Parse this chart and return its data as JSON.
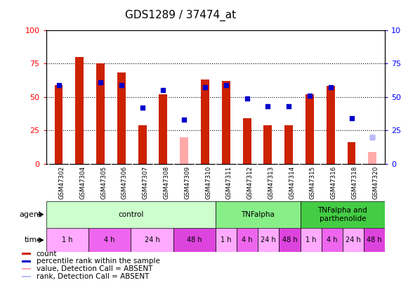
{
  "title": "GDS1289 / 37474_at",
  "samples": [
    "GSM47302",
    "GSM47304",
    "GSM47305",
    "GSM47306",
    "GSM47307",
    "GSM47308",
    "GSM47309",
    "GSM47310",
    "GSM47311",
    "GSM47312",
    "GSM47313",
    "GSM47314",
    "GSM47315",
    "GSM47316",
    "GSM47318",
    "GSM47320"
  ],
  "count_values": [
    59,
    80,
    75,
    68,
    29,
    52,
    null,
    63,
    62,
    34,
    29,
    29,
    52,
    58,
    16,
    null
  ],
  "rank_values": [
    59,
    null,
    61,
    59,
    42,
    55,
    33,
    57,
    59,
    49,
    43,
    43,
    51,
    57,
    34,
    20
  ],
  "absent_count": [
    null,
    null,
    null,
    null,
    null,
    null,
    20,
    null,
    null,
    null,
    null,
    null,
    null,
    null,
    null,
    9
  ],
  "absent_rank": [
    null,
    null,
    null,
    null,
    null,
    null,
    null,
    null,
    null,
    null,
    null,
    null,
    null,
    null,
    null,
    20
  ],
  "count_color": "#cc2200",
  "rank_color": "#0000cc",
  "absent_count_color": "#ffaaaa",
  "absent_rank_color": "#bbbbff",
  "ylim": [
    0,
    100
  ],
  "yticks": [
    0,
    25,
    50,
    75,
    100
  ],
  "background_color": "#ffffff",
  "plot_bg": "#ffffff",
  "agent_groups": [
    {
      "label": "control",
      "start": 0,
      "end": 8,
      "color": "#ccffcc"
    },
    {
      "label": "TNFalpha",
      "start": 8,
      "end": 12,
      "color": "#88ee88"
    },
    {
      "label": "TNFalpha and\nparthenolide",
      "start": 12,
      "end": 16,
      "color": "#44cc44"
    }
  ],
  "time_groups": [
    {
      "label": "1 h",
      "start": 0,
      "end": 2,
      "color": "#ffaaff"
    },
    {
      "label": "4 h",
      "start": 2,
      "end": 4,
      "color": "#ee66ee"
    },
    {
      "label": "24 h",
      "start": 4,
      "end": 6,
      "color": "#ffaaff"
    },
    {
      "label": "48 h",
      "start": 6,
      "end": 8,
      "color": "#dd44dd"
    },
    {
      "label": "1 h",
      "start": 8,
      "end": 9,
      "color": "#ffaaff"
    },
    {
      "label": "4 h",
      "start": 9,
      "end": 10,
      "color": "#ee66ee"
    },
    {
      "label": "24 h",
      "start": 10,
      "end": 11,
      "color": "#ffaaff"
    },
    {
      "label": "48 h",
      "start": 11,
      "end": 12,
      "color": "#dd44dd"
    },
    {
      "label": "1 h",
      "start": 12,
      "end": 13,
      "color": "#ffaaff"
    },
    {
      "label": "4 h",
      "start": 13,
      "end": 14,
      "color": "#ee66ee"
    },
    {
      "label": "24 h",
      "start": 14,
      "end": 15,
      "color": "#ffaaff"
    },
    {
      "label": "48 h",
      "start": 15,
      "end": 16,
      "color": "#dd44dd"
    }
  ],
  "legend_items": [
    {
      "label": "count",
      "color": "#cc2200"
    },
    {
      "label": "percentile rank within the sample",
      "color": "#0000cc"
    },
    {
      "label": "value, Detection Call = ABSENT",
      "color": "#ffaaaa"
    },
    {
      "label": "rank, Detection Call = ABSENT",
      "color": "#bbbbff"
    }
  ]
}
